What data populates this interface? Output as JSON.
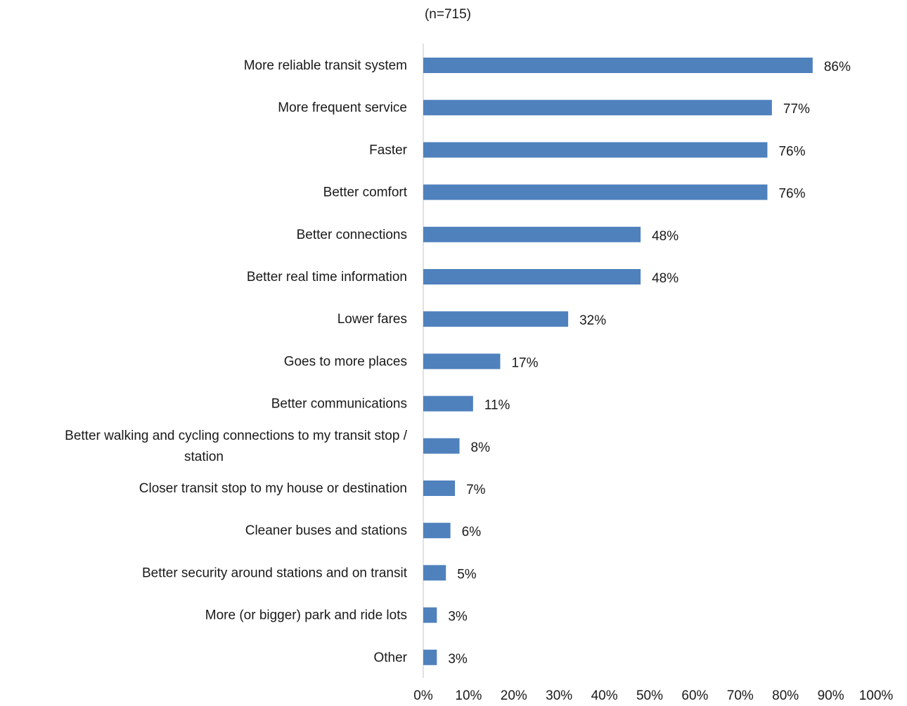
{
  "chart_data": {
    "type": "bar",
    "orientation": "horizontal",
    "title": "",
    "subtitle": "(n=715)",
    "xlabel": "",
    "ylabel": "",
    "xlim": [
      0,
      100
    ],
    "grid": false,
    "legend": "none",
    "bar_color": "#4f81bd",
    "axis_color": "#d9d9d9",
    "categories": [
      [
        "More reliable transit system"
      ],
      [
        "More frequent service"
      ],
      [
        "Faster"
      ],
      [
        "Better comfort"
      ],
      [
        "Better connections"
      ],
      [
        "Better real time information"
      ],
      [
        "Lower fares"
      ],
      [
        "Goes to more places"
      ],
      [
        "Better communications"
      ],
      [
        "Better walking and cycling connections to my transit stop /",
        "station"
      ],
      [
        "Closer transit stop to my house or destination"
      ],
      [
        "Cleaner buses and stations"
      ],
      [
        "Better security around stations and on transit"
      ],
      [
        "More (or bigger) park and ride lots"
      ],
      [
        "Other"
      ]
    ],
    "values": [
      86,
      77,
      76,
      76,
      48,
      48,
      32,
      17,
      11,
      8,
      7,
      6,
      5,
      3,
      3
    ],
    "value_labels": [
      "86%",
      "77%",
      "76%",
      "76%",
      "48%",
      "48%",
      "32%",
      "17%",
      "11%",
      "8%",
      "7%",
      "6%",
      "5%",
      "3%",
      "3%"
    ],
    "x_ticks": [
      0,
      10,
      20,
      30,
      40,
      50,
      60,
      70,
      80,
      90,
      100
    ],
    "x_tick_labels": [
      "0%",
      "10%",
      "20%",
      "30%",
      "40%",
      "50%",
      "60%",
      "70%",
      "80%",
      "90%",
      "100%"
    ]
  }
}
